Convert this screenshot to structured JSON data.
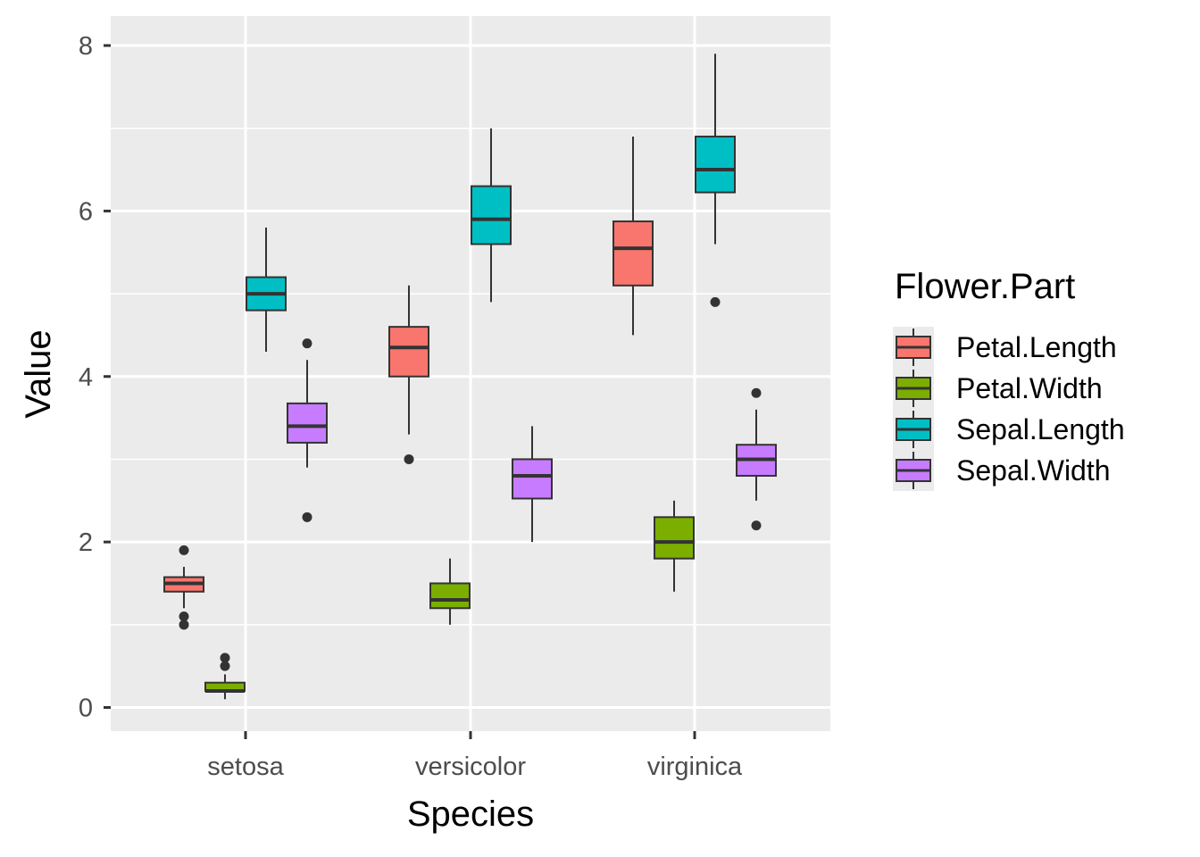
{
  "chart_data": {
    "type": "box",
    "xlabel": "Species",
    "ylabel": "Value",
    "categories": [
      "setosa",
      "versicolor",
      "virginica"
    ],
    "ylim": [
      -0.3,
      8.3
    ],
    "yticks": [
      0,
      2,
      4,
      6,
      8
    ],
    "grid": true,
    "legend": {
      "title": "Flower.Part",
      "position": "right"
    },
    "series": [
      {
        "name": "Petal.Length",
        "color": "#F8766D",
        "boxes": [
          {
            "category": "setosa",
            "min": 1.2,
            "q1": 1.4,
            "median": 1.5,
            "q3": 1.575,
            "max": 1.7,
            "outliers": [
              1.9,
              1.1,
              1.0
            ]
          },
          {
            "category": "versicolor",
            "min": 3.3,
            "q1": 4.0,
            "median": 4.35,
            "q3": 4.6,
            "max": 5.1,
            "outliers": [
              3.0
            ]
          },
          {
            "category": "virginica",
            "min": 4.5,
            "q1": 5.1,
            "median": 5.55,
            "q3": 5.875,
            "max": 6.9,
            "outliers": []
          }
        ]
      },
      {
        "name": "Petal.Width",
        "color": "#7CAE00",
        "boxes": [
          {
            "category": "setosa",
            "min": 0.1,
            "q1": 0.2,
            "median": 0.2,
            "q3": 0.3,
            "max": 0.4,
            "outliers": [
              0.6,
              0.5
            ]
          },
          {
            "category": "versicolor",
            "min": 1.0,
            "q1": 1.2,
            "median": 1.3,
            "q3": 1.5,
            "max": 1.8,
            "outliers": []
          },
          {
            "category": "virginica",
            "min": 1.4,
            "q1": 1.8,
            "median": 2.0,
            "q3": 2.3,
            "max": 2.5,
            "outliers": []
          }
        ]
      },
      {
        "name": "Sepal.Length",
        "color": "#00BFC4",
        "boxes": [
          {
            "category": "setosa",
            "min": 4.3,
            "q1": 4.8,
            "median": 5.0,
            "q3": 5.2,
            "max": 5.8,
            "outliers": []
          },
          {
            "category": "versicolor",
            "min": 4.9,
            "q1": 5.6,
            "median": 5.9,
            "q3": 6.3,
            "max": 7.0,
            "outliers": []
          },
          {
            "category": "virginica",
            "min": 5.6,
            "q1": 6.225,
            "median": 6.5,
            "q3": 6.9,
            "max": 7.9,
            "outliers": [
              4.9
            ]
          }
        ]
      },
      {
        "name": "Sepal.Width",
        "color": "#C77CFF",
        "boxes": [
          {
            "category": "setosa",
            "min": 2.9,
            "q1": 3.2,
            "median": 3.4,
            "q3": 3.675,
            "max": 4.2,
            "outliers": [
              4.4,
              2.3
            ]
          },
          {
            "category": "versicolor",
            "min": 2.0,
            "q1": 2.525,
            "median": 2.8,
            "q3": 3.0,
            "max": 3.4,
            "outliers": []
          },
          {
            "category": "virginica",
            "min": 2.5,
            "q1": 2.8,
            "median": 3.0,
            "q3": 3.175,
            "max": 3.6,
            "outliers": [
              3.8,
              2.2
            ]
          }
        ]
      }
    ]
  }
}
